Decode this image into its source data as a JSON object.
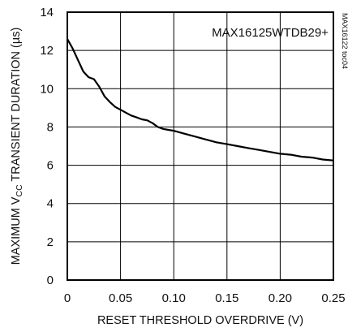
{
  "chart_data": {
    "type": "line",
    "xlabel": "RESET THRESHOLD OVERDRIVE (V)",
    "ylabel": {
      "prefix": "MAXIMUM V",
      "subscript": "CC",
      "suffix": " TRANSIENT DURATION (µs)"
    },
    "annotation": "MAX16125WTDB29+",
    "side_code": "MAX16122 toc04",
    "xlim": [
      0,
      0.25
    ],
    "ylim": [
      0,
      14
    ],
    "x_ticks": [
      "0",
      "0.05",
      "0.10",
      "0.15",
      "0.20",
      "0.25"
    ],
    "x_tick_values": [
      0,
      0.05,
      0.1,
      0.15,
      0.2,
      0.25
    ],
    "y_ticks": [
      "0",
      "2",
      "4",
      "6",
      "8",
      "10",
      "12",
      "14"
    ],
    "y_tick_values": [
      0,
      2,
      4,
      6,
      8,
      10,
      12,
      14
    ],
    "grid": true,
    "series": [
      {
        "color": "#000000",
        "x": [
          0,
          0.005,
          0.01,
          0.015,
          0.02,
          0.025,
          0.03,
          0.035,
          0.04,
          0.045,
          0.05,
          0.055,
          0.06,
          0.065,
          0.07,
          0.075,
          0.08,
          0.085,
          0.09,
          0.095,
          0.1,
          0.11,
          0.12,
          0.13,
          0.14,
          0.15,
          0.16,
          0.17,
          0.18,
          0.19,
          0.2,
          0.21,
          0.22,
          0.23,
          0.24,
          0.25
        ],
        "y": [
          12.6,
          12.1,
          11.5,
          10.9,
          10.6,
          10.5,
          10.1,
          9.6,
          9.3,
          9.05,
          8.9,
          8.75,
          8.6,
          8.5,
          8.4,
          8.35,
          8.2,
          8.0,
          7.9,
          7.85,
          7.8,
          7.65,
          7.5,
          7.35,
          7.2,
          7.1,
          7.0,
          6.9,
          6.8,
          6.7,
          6.6,
          6.55,
          6.45,
          6.4,
          6.3,
          6.25
        ]
      }
    ]
  }
}
